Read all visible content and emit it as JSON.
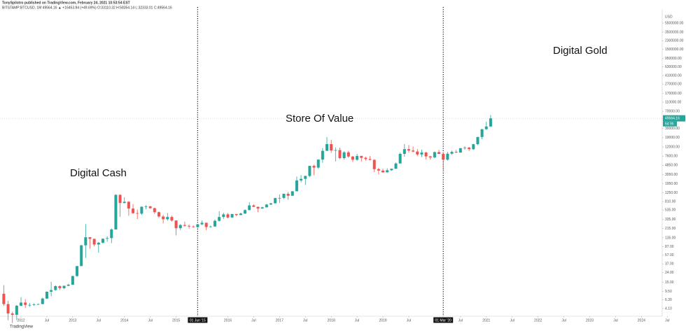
{
  "chart_data": {
    "type": "candlestick",
    "title": "TonySpilotro published on TradingView.com, February 24, 2021 10:53:54 EST",
    "subtitle": "BITSTAMP:BTCUSD, 1M  49564.16 ▲ +16453.84 (+49.69%)  O:33110.32 H:58354.14 L:32333.01 C:49564.16",
    "footer": "TradingView",
    "currency": "USD",
    "countdown": "6d 9h",
    "annotations": [
      "Digital Cash",
      "Store Of Value",
      "Digital Gold"
    ],
    "markers": [
      {
        "x": "2015-06",
        "label": "01 Jun '15"
      },
      {
        "x": "2020-03",
        "label": "01 Mar '20"
      }
    ],
    "up_color": "#26a69a",
    "down_color": "#ef5350",
    "log_scale": true,
    "x": [
      "2011-09",
      "2011-10",
      "2011-11",
      "2011-12",
      "2012-01",
      "2012-02",
      "2012-03",
      "2012-04",
      "2012-05",
      "2012-06",
      "2012-07",
      "2012-08",
      "2012-09",
      "2012-10",
      "2012-11",
      "2012-12",
      "2013-01",
      "2013-02",
      "2013-03",
      "2013-04",
      "2013-05",
      "2013-06",
      "2013-07",
      "2013-08",
      "2013-09",
      "2013-10",
      "2013-11",
      "2013-12",
      "2014-01",
      "2014-02",
      "2014-03",
      "2014-04",
      "2014-05",
      "2014-06",
      "2014-07",
      "2014-08",
      "2014-09",
      "2014-10",
      "2014-11",
      "2014-12",
      "2015-01",
      "2015-02",
      "2015-03",
      "2015-04",
      "2015-05",
      "2015-06",
      "2015-07",
      "2015-08",
      "2015-09",
      "2015-10",
      "2015-11",
      "2015-12",
      "2016-01",
      "2016-02",
      "2016-03",
      "2016-04",
      "2016-05",
      "2016-06",
      "2016-07",
      "2016-08",
      "2016-09",
      "2016-10",
      "2016-11",
      "2016-12",
      "2017-01",
      "2017-02",
      "2017-03",
      "2017-04",
      "2017-05",
      "2017-06",
      "2017-07",
      "2017-08",
      "2017-09",
      "2017-10",
      "2017-11",
      "2017-12",
      "2018-01",
      "2018-02",
      "2018-03",
      "2018-04",
      "2018-05",
      "2018-06",
      "2018-07",
      "2018-08",
      "2018-09",
      "2018-10",
      "2018-11",
      "2018-12",
      "2019-01",
      "2019-02",
      "2019-03",
      "2019-04",
      "2019-05",
      "2019-06",
      "2019-07",
      "2019-08",
      "2019-09",
      "2019-10",
      "2019-11",
      "2019-12",
      "2020-01",
      "2020-02",
      "2020-03",
      "2020-04",
      "2020-05",
      "2020-06",
      "2020-07",
      "2020-08",
      "2020-09",
      "2020-10",
      "2020-11",
      "2020-12",
      "2021-01",
      "2021-02"
    ],
    "open": [
      8.5,
      5.1,
      3.2,
      3.0,
      4.7,
      5.5,
      4.9,
      4.9,
      5.0,
      5.1,
      6.7,
      9.4,
      10.2,
      12.4,
      11.2,
      12.6,
      13.3,
      20.4,
      33.4,
      93,
      139,
      128,
      97,
      106,
      129,
      133,
      204,
      1129,
      754,
      801,
      573,
      457,
      446,
      627,
      640,
      584,
      480,
      387,
      338,
      378,
      318,
      217,
      254,
      244,
      236,
      229,
      263,
      284,
      230,
      236,
      313,
      378,
      430,
      369,
      437,
      416,
      448,
      532,
      670,
      624,
      574,
      609,
      700,
      743,
      963,
      970,
      1190,
      1080,
      1348,
      2300,
      2490,
      2870,
      4730,
      4340,
      6450,
      9950,
      13880,
      10100,
      10300,
      6930,
      9240,
      7500,
      6390,
      7730,
      7030,
      6630,
      6370,
      4020,
      3740,
      3440,
      3810,
      4100,
      5320,
      8560,
      10820,
      10080,
      9600,
      8300,
      9150,
      7550,
      7190,
      9350,
      8540,
      6420,
      8630,
      9450,
      9140,
      11340,
      11650,
      10780,
      13800,
      19700,
      28980,
      33110.32
    ],
    "high": [
      13,
      6.0,
      3.5,
      4.9,
      7.2,
      6.5,
      5.4,
      5.3,
      5.2,
      7.0,
      9.5,
      15.4,
      12.9,
      12.9,
      12.7,
      13.9,
      20.7,
      33.4,
      95.7,
      266,
      140,
      130,
      110,
      130,
      145,
      215,
      1163,
      1163,
      1000,
      830,
      718,
      547,
      636,
      680,
      650,
      600,
      495,
      420,
      460,
      400,
      320,
      266,
      300,
      261,
      248,
      268,
      318,
      286,
      247,
      335,
      502,
      465,
      460,
      442,
      439,
      467,
      550,
      780,
      704,
      630,
      630,
      720,
      755,
      974,
      1150,
      1200,
      1300,
      1355,
      2790,
      3000,
      2930,
      4750,
      5000,
      6450,
      11400,
      19666,
      17200,
      11800,
      11700,
      9750,
      9990,
      7760,
      8500,
      7760,
      7410,
      7680,
      6550,
      4300,
      4100,
      4200,
      4140,
      5600,
      9000,
      13880,
      13200,
      12330,
      10900,
      10540,
      9500,
      7750,
      9580,
      10500,
      9190,
      9460,
      10070,
      10390,
      11440,
      12470,
      12070,
      14100,
      19900,
      29300,
      41950,
      58354.14
    ],
    "low": [
      4.7,
      2.3,
      2.0,
      2.3,
      4.6,
      4.2,
      4.5,
      4.7,
      4.9,
      5.1,
      6.5,
      7.5,
      9.9,
      10.3,
      10.7,
      12.4,
      13.2,
      19.6,
      33.2,
      50,
      79,
      88,
      65,
      101,
      111,
      104,
      204,
      380,
      740,
      400,
      439,
      340,
      419,
      555,
      566,
      440,
      360,
      275,
      315,
      300,
      152,
      198,
      235,
      213,
      225,
      221,
      252,
      198,
      225,
      236,
      300,
      345,
      352,
      364,
      393,
      414,
      438,
      525,
      610,
      480,
      570,
      607,
      680,
      742,
      752,
      915,
      890,
      1070,
      1340,
      2100,
      1840,
      2700,
      2970,
      4100,
      5500,
      9950,
      9000,
      5900,
      6600,
      6430,
      7000,
      5750,
      6070,
      5880,
      6120,
      6200,
      3500,
      3130,
      3350,
      3380,
      3700,
      4050,
      5330,
      7440,
      9070,
      9320,
      7710,
      7300,
      6520,
      6430,
      6870,
      8450,
      3850,
      6150,
      8110,
      8930,
      8960,
      10530,
      9880,
      10380,
      13200,
      17600,
      28130,
      32333.01
    ],
    "close": [
      5.1,
      3.2,
      3.0,
      4.7,
      5.5,
      4.9,
      4.9,
      5.0,
      5.1,
      6.7,
      9.4,
      10.2,
      12.4,
      11.2,
      12.6,
      13.3,
      20.4,
      33.4,
      93,
      139,
      128,
      97,
      106,
      129,
      133,
      204,
      1129,
      754,
      801,
      573,
      457,
      446,
      627,
      640,
      584,
      480,
      387,
      338,
      378,
      318,
      217,
      254,
      244,
      236,
      229,
      263,
      284,
      230,
      236,
      313,
      378,
      430,
      369,
      437,
      416,
      448,
      532,
      670,
      624,
      574,
      609,
      700,
      743,
      963,
      970,
      1190,
      1080,
      1348,
      2300,
      2490,
      2870,
      4730,
      4340,
      6450,
      9950,
      13880,
      10100,
      10300,
      6930,
      9240,
      7500,
      6390,
      7730,
      7030,
      6630,
      6370,
      4020,
      3740,
      3440,
      3810,
      4100,
      5320,
      8560,
      10820,
      10080,
      9600,
      8300,
      9150,
      7550,
      7190,
      9350,
      8540,
      6420,
      8630,
      9450,
      9140,
      11340,
      11650,
      10780,
      13800,
      19700,
      28980,
      33110.32,
      49564.16
    ],
    "ylim": [
      2.8,
      10600000
    ],
    "yticks": [
      {
        "value": 5500000,
        "label": "5500000.00"
      },
      {
        "value": 3500000,
        "label": "3500000.00"
      },
      {
        "value": 2300000,
        "label": "2300000.00"
      },
      {
        "value": 1500000,
        "label": "1500000.00"
      },
      {
        "value": 950000,
        "label": "950000.00"
      },
      {
        "value": 630000,
        "label": "630000.00"
      },
      {
        "value": 410000,
        "label": "410000.00"
      },
      {
        "value": 270000,
        "label": "270000.00"
      },
      {
        "value": 170000,
        "label": "170000.00"
      },
      {
        "value": 110000,
        "label": "110000.00"
      },
      {
        "value": 70000,
        "label": "70000.00"
      },
      {
        "value": 30000,
        "label": "30000.00"
      },
      {
        "value": 19000,
        "label": "19000.00"
      },
      {
        "value": 12000,
        "label": "12000.00"
      },
      {
        "value": 7600,
        "label": "7600.00"
      },
      {
        "value": 4850,
        "label": "4850.00"
      },
      {
        "value": 3050,
        "label": "3050.00"
      },
      {
        "value": 1950,
        "label": "1950.00"
      },
      {
        "value": 1250,
        "label": "1250.00"
      },
      {
        "value": 810,
        "label": "810.00"
      },
      {
        "value": 535,
        "label": "535.00"
      },
      {
        "value": 335,
        "label": "335.00"
      },
      {
        "value": 215,
        "label": "215.00"
      },
      {
        "value": 135,
        "label": "135.00"
      },
      {
        "value": 87,
        "label": "87.00"
      },
      {
        "value": 57,
        "label": "57.00"
      },
      {
        "value": 37,
        "label": "37.00"
      },
      {
        "value": 24,
        "label": "24.00"
      },
      {
        "value": 15,
        "label": "15.00"
      },
      {
        "value": 9.5,
        "label": "9.50"
      },
      {
        "value": 6.3,
        "label": "6.30"
      },
      {
        "value": 4.1,
        "label": "4.10"
      }
    ],
    "xticks": [
      {
        "value": "2012-01",
        "label": "2012"
      },
      {
        "value": "2012-07",
        "label": "Jul"
      },
      {
        "value": "2013-01",
        "label": "2013"
      },
      {
        "value": "2013-07",
        "label": "Jul"
      },
      {
        "value": "2014-01",
        "label": "2014"
      },
      {
        "value": "2014-07",
        "label": "Jul"
      },
      {
        "value": "2015-01",
        "label": "2015"
      },
      {
        "value": "2016-01",
        "label": "2016"
      },
      {
        "value": "2016-07",
        "label": "Jul"
      },
      {
        "value": "2017-01",
        "label": "2017"
      },
      {
        "value": "2017-07",
        "label": "Jul"
      },
      {
        "value": "2018-01",
        "label": "2018"
      },
      {
        "value": "2018-07",
        "label": "Jul"
      },
      {
        "value": "2019-01",
        "label": "2019"
      },
      {
        "value": "2019-07",
        "label": "Jul"
      },
      {
        "value": "2020-07",
        "label": "Jul"
      },
      {
        "value": "2021-01",
        "label": "2021"
      },
      {
        "value": "2021-07",
        "label": "Jul"
      },
      {
        "value": "2022-01",
        "label": "2022"
      },
      {
        "value": "2022-07",
        "label": "Jul"
      },
      {
        "value": "2023-01",
        "label": "2023"
      },
      {
        "value": "2023-07",
        "label": "Jul"
      },
      {
        "value": "2024-01",
        "label": "2024"
      },
      {
        "value": "2024-07",
        "label": "Jul"
      }
    ]
  }
}
